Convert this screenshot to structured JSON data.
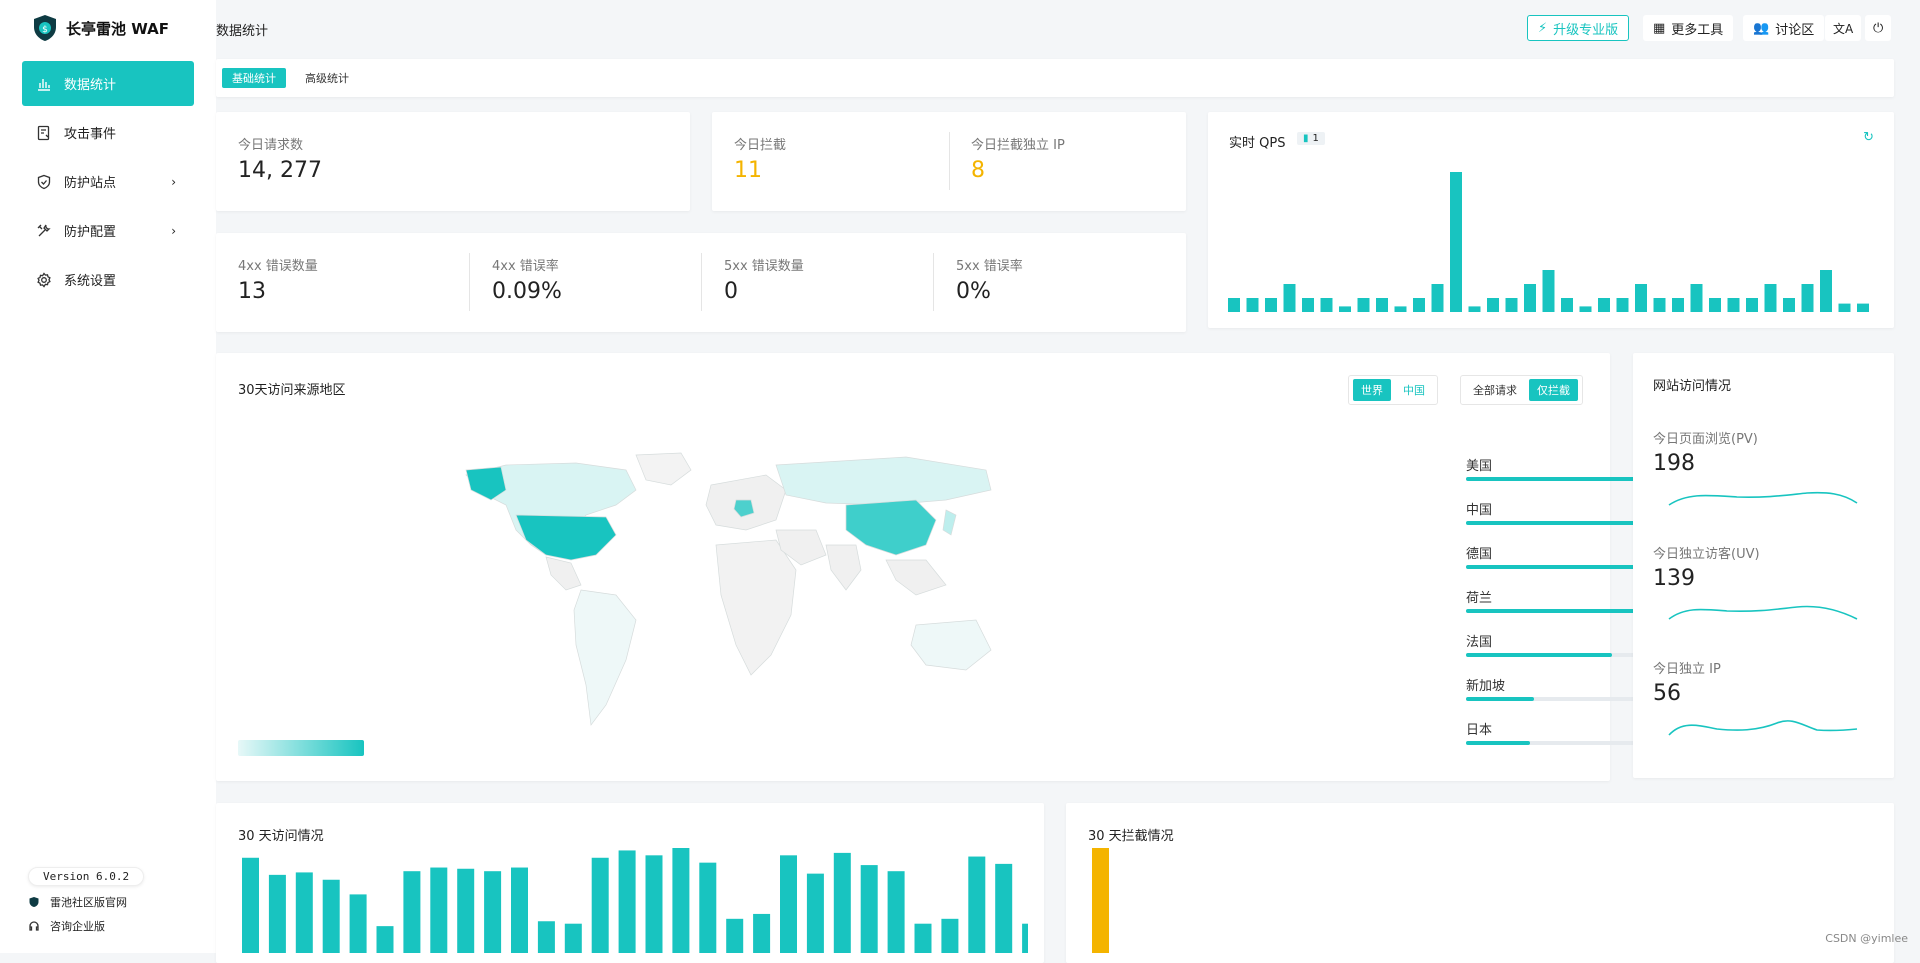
{
  "app": {
    "name": "长亭雷池 WAF",
    "breadcrumb": "数据统计"
  },
  "nav": [
    {
      "label": "数据统计",
      "icon": "bar-chart-icon",
      "active": true
    },
    {
      "label": "攻击事件",
      "icon": "document-alert-icon",
      "active": false
    },
    {
      "label": "防护站点",
      "icon": "shield-icon",
      "active": false,
      "chevron": "›"
    },
    {
      "label": "防护配置",
      "icon": "tools-icon",
      "active": false,
      "chevron": "›"
    },
    {
      "label": "系统设置",
      "icon": "gear-icon",
      "active": false
    }
  ],
  "sidebar_footer": {
    "version": "Version 6.0.2",
    "community": "雷池社区版官网",
    "enterprise": "咨询企业版"
  },
  "topbar": {
    "upgrade": "升级专业版",
    "tools": "更多工具",
    "forum": "讨论区"
  },
  "tabs": [
    "基础统计",
    "高级统计"
  ],
  "today": {
    "requests_label": "今日请求数",
    "requests": "14, 277",
    "blocked_label": "今日拦截",
    "blocked": "11",
    "blocked_ip_label": "今日拦截独立 IP",
    "blocked_ip": "8"
  },
  "errors": [
    {
      "label": "4xx 错误数量",
      "value": "13"
    },
    {
      "label": "4xx 错误率",
      "value": "0.09%"
    },
    {
      "label": "5xx 错误数量",
      "value": "0"
    },
    {
      "label": "5xx 错误率",
      "value": "0%"
    }
  ],
  "qps": {
    "title": "实时 QPS",
    "badge": "1"
  },
  "geo": {
    "title": "30天访问来源地区",
    "scope": [
      "世界",
      "中国"
    ],
    "filter": [
      "全部请求",
      "仅拦截"
    ],
    "ranking": [
      {
        "name": "美国",
        "value": 730
      },
      {
        "name": "中国",
        "value": 564
      },
      {
        "name": "德国",
        "value": 468
      },
      {
        "name": "荷兰",
        "value": 416
      },
      {
        "name": "法国",
        "value": 320
      },
      {
        "name": "新加坡",
        "value": 150
      },
      {
        "name": "日本",
        "value": 141
      }
    ]
  },
  "site": {
    "title": "网站访问情况",
    "pv_label": "今日页面浏览(PV)",
    "pv": "198",
    "uv_label": "今日独立访客(UV)",
    "uv": "139",
    "ip_label": "今日独立 IP",
    "ip": "56"
  },
  "visits30": {
    "title": "30 天访问情况"
  },
  "blocks30": {
    "title": "30 天拦截情况"
  },
  "watermark": "CSDN @yimlee",
  "chart_data": [
    {
      "type": "bar",
      "title": "实时 QPS",
      "values": [
        1,
        1,
        1,
        2,
        1,
        1,
        0.4,
        1,
        1,
        0.4,
        1,
        2,
        10,
        0.4,
        1,
        1,
        2,
        3,
        1,
        0.4,
        1,
        1,
        2,
        1,
        1,
        2,
        1,
        1,
        1,
        2,
        1,
        2,
        3,
        0.6,
        0.6
      ]
    },
    {
      "type": "bar",
      "title": "30 天访问情况",
      "values": [
        78,
        64,
        66,
        60,
        48,
        22,
        67,
        70,
        69,
        67,
        70,
        26,
        24,
        78,
        84,
        80,
        86,
        74,
        28,
        32,
        80,
        65,
        82,
        72,
        67,
        24,
        28,
        79,
        73,
        24
      ]
    },
    {
      "type": "bar",
      "title": "30 天拦截情况",
      "values": [
        11
      ]
    }
  ],
  "colors": {
    "accent": "#18c4c0",
    "warn": "#f4b400"
  }
}
